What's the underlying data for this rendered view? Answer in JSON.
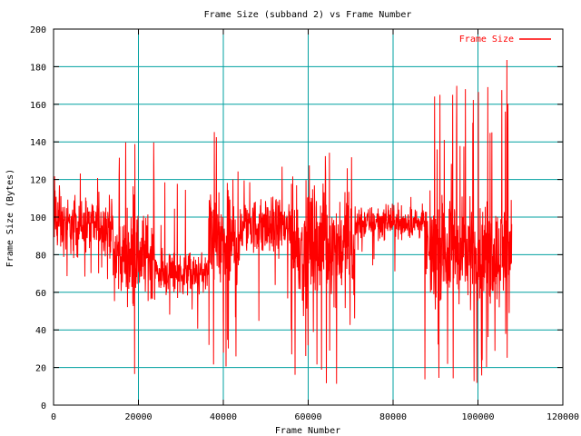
{
  "colors": {
    "background": "#ffffff",
    "series": "#ff0000",
    "grid": "#00a0a0",
    "axis": "#000000"
  },
  "chart_data": {
    "type": "line",
    "title": "Frame Size (subband 2) vs Frame Number",
    "xlabel": "Frame Number",
    "ylabel": "Frame Size (Bytes)",
    "xlim": [
      0,
      120000
    ],
    "ylim": [
      0,
      200
    ],
    "xticks": [
      0,
      20000,
      40000,
      60000,
      80000,
      100000,
      120000
    ],
    "yticks": [
      0,
      20,
      40,
      60,
      80,
      100,
      120,
      140,
      160,
      180,
      200
    ],
    "grid": true,
    "legend_position": "top-right",
    "series": [
      {
        "name": "Frame Size",
        "color": "#ff0000",
        "segments": [
          {
            "x_start": 0,
            "x_end": 1500,
            "y_center": 100,
            "spread": 18,
            "spike_min": 20,
            "spike_max": 135,
            "spike_rate": 0.05
          },
          {
            "x_start": 1500,
            "x_end": 14000,
            "y_center": 95,
            "spread": 12,
            "spike_min": 62,
            "spike_max": 125,
            "spike_rate": 0.05
          },
          {
            "x_start": 14000,
            "x_end": 24000,
            "y_center": 80,
            "spread": 18,
            "spike_min": 10,
            "spike_max": 143,
            "spike_rate": 0.08
          },
          {
            "x_start": 24000,
            "x_end": 36500,
            "y_center": 70,
            "spread": 9,
            "spike_min": 40,
            "spike_max": 120,
            "spike_rate": 0.04
          },
          {
            "x_start": 36500,
            "x_end": 44000,
            "y_center": 85,
            "spread": 22,
            "spike_min": 10,
            "spike_max": 147,
            "spike_rate": 0.1
          },
          {
            "x_start": 44000,
            "x_end": 56000,
            "y_center": 95,
            "spread": 12,
            "spike_min": 40,
            "spike_max": 140,
            "spike_rate": 0.05
          },
          {
            "x_start": 56000,
            "x_end": 71000,
            "y_center": 85,
            "spread": 22,
            "spike_min": 10,
            "spike_max": 140,
            "spike_rate": 0.1
          },
          {
            "x_start": 71000,
            "x_end": 87500,
            "y_center": 97,
            "spread": 7,
            "spike_min": 70,
            "spike_max": 115,
            "spike_rate": 0.03
          },
          {
            "x_start": 87500,
            "x_end": 96500,
            "y_center": 82,
            "spread": 22,
            "spike_min": 10,
            "spike_max": 172,
            "spike_rate": 0.1
          },
          {
            "x_start": 96500,
            "x_end": 108000,
            "y_center": 80,
            "spread": 22,
            "spike_min": 10,
            "spike_max": 187,
            "spike_rate": 0.1
          }
        ]
      }
    ]
  }
}
